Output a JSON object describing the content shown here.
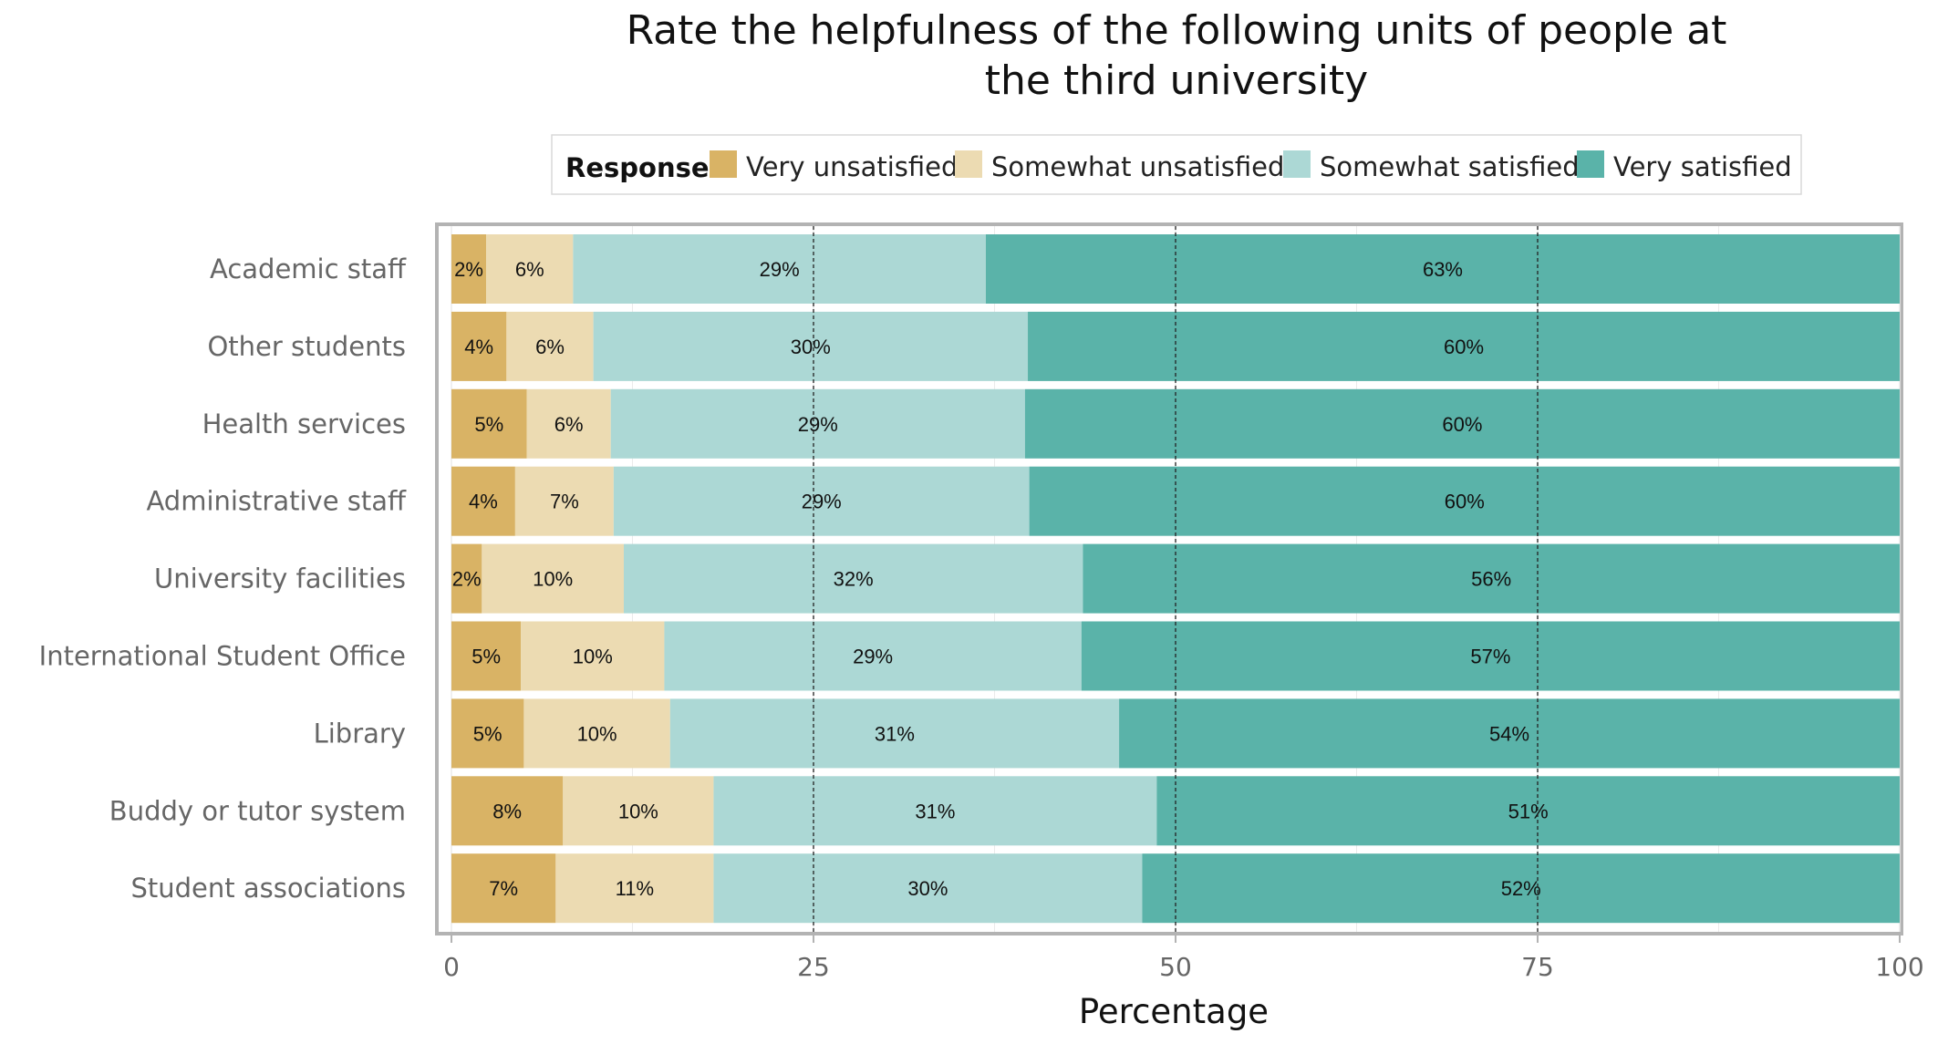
{
  "chart_data": {
    "type": "bar",
    "orientation": "horizontal",
    "stacked": true,
    "title_lines": [
      "Rate the helpfulness of the following units of people at",
      "the third university"
    ],
    "xlabel": "Percentage",
    "ylabel": "",
    "xlim": [
      0,
      100
    ],
    "xticks": [
      0,
      25,
      50,
      75,
      100
    ],
    "reference_lines": [
      25,
      50,
      75
    ],
    "grid": true,
    "legend": {
      "title": "Response",
      "placement": "top",
      "entries": [
        "Very unsatisfied",
        "Somewhat unsatisfied",
        "Somewhat satisfied",
        "Very satisfied"
      ]
    },
    "categories": [
      "Academic staff",
      "Other students",
      "Health services",
      "Administrative staff",
      "University facilities",
      "International Student Office",
      "Library",
      "Buddy or tutor system",
      "Student associations"
    ],
    "series": [
      {
        "name": "Very unsatisfied",
        "color": "#d9b365",
        "values": [
          2.4,
          3.8,
          5.2,
          4.4,
          2.1,
          4.8,
          5.0,
          7.7,
          7.2
        ],
        "labels": [
          "2%",
          "4%",
          "5%",
          "4%",
          "2%",
          "5%",
          "5%",
          "8%",
          "7%"
        ]
      },
      {
        "name": "Somewhat unsatisfied",
        "color": "#ecdbb2",
        "values": [
          6.0,
          6.0,
          5.8,
          6.8,
          9.8,
          9.9,
          10.1,
          10.4,
          10.9
        ],
        "labels": [
          "6%",
          "6%",
          "6%",
          "7%",
          "10%",
          "10%",
          "10%",
          "10%",
          "11%"
        ]
      },
      {
        "name": "Somewhat satisfied",
        "color": "#acd8d5",
        "values": [
          28.5,
          30.0,
          28.6,
          28.7,
          31.7,
          28.8,
          31.0,
          30.6,
          29.6
        ],
        "labels": [
          "29%",
          "30%",
          "29%",
          "29%",
          "32%",
          "29%",
          "31%",
          "31%",
          "30%"
        ]
      },
      {
        "name": "Very satisfied",
        "color": "#5ab3a9",
        "values": [
          63.1,
          60.2,
          60.4,
          60.1,
          56.4,
          56.5,
          53.9,
          51.3,
          52.3
        ],
        "labels": [
          "63%",
          "60%",
          "60%",
          "60%",
          "56%",
          "57%",
          "54%",
          "51%",
          "52%"
        ]
      }
    ]
  }
}
